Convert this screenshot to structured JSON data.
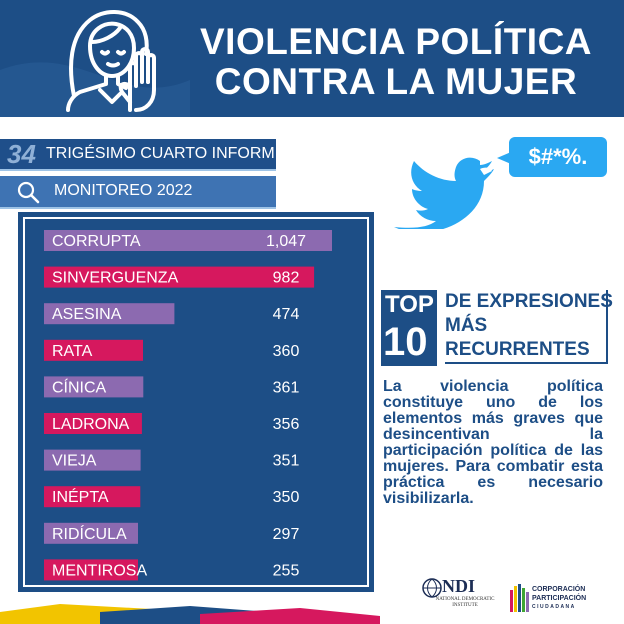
{
  "header": {
    "title_line1": "VIOLENCIA POLÍTICA",
    "title_line2": "CONTRA LA MUJER"
  },
  "report": {
    "number": "34",
    "label": "TRIGÉSIMO CUARTO INFORME"
  },
  "monitor": {
    "label": "MONITOREO 2022"
  },
  "speech_bubble": "$#*%.",
  "top10": {
    "top_label": "TOP",
    "ten_label": "10",
    "line1": "DE EXPRESIONES",
    "line2": "MÁS",
    "line3": "RECURRENTES"
  },
  "description": "La violencia política constituye uno de los elementos más graves que desincentivan la participación política de las mujeres. Para combatir esta práctica es necesario visibilizarla.",
  "logos": {
    "ndi_name": "NDI",
    "ndi_sub": "NATIONAL DEMOCRATIC INSTITUTE",
    "cpc_line1": "CORPORACIÓN",
    "cpc_line2": "PARTICIPACIÓN",
    "cpc_line3": "CIUDADANA"
  },
  "colors": {
    "navy": "#1d4e86",
    "purple": "#8c6ab0",
    "magenta": "#d6185e",
    "twitter_blue": "#2aa8f2"
  },
  "chart_data": {
    "type": "bar",
    "orientation": "horizontal",
    "title": "TOP 10 DE EXPRESIONES MÁS RECURRENTES",
    "categories": [
      "CORRUPTA",
      "SINVERGUENZA",
      "ASESINA",
      "RATA",
      "CÍNICA",
      "LADRONA",
      "VIEJA",
      "INÉPTA",
      "RIDÍCULA",
      "MENTIROSA"
    ],
    "values": [
      1047,
      982,
      474,
      360,
      361,
      356,
      351,
      350,
      297,
      255
    ],
    "value_labels": [
      "1,047",
      "982",
      "474",
      "360",
      "361",
      "356",
      "351",
      "350",
      "297",
      "255"
    ],
    "bar_colors": [
      "#8c6ab0",
      "#d6185e",
      "#8c6ab0",
      "#d6185e",
      "#8c6ab0",
      "#d6185e",
      "#8c6ab0",
      "#d6185e",
      "#8c6ab0",
      "#d6185e"
    ],
    "xlim": [
      0,
      1047
    ]
  }
}
